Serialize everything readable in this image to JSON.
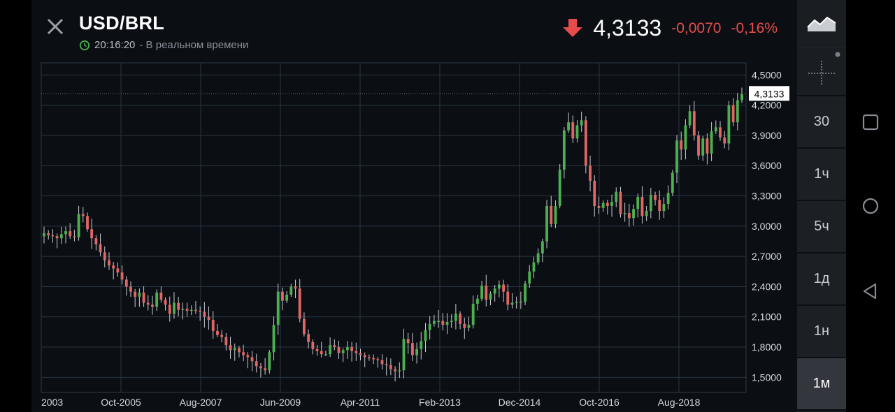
{
  "header": {
    "symbol": "USD/BRL",
    "time": "20:16:20",
    "time_suffix": "- В реальном времени",
    "price": "4,3133",
    "change": "-0,0070",
    "change_pct": "-0,16%",
    "direction": "down",
    "down_color": "#e74c4c"
  },
  "toolbar": {
    "chart_type_icon": "area-chart-icon",
    "crosshair_icon": "crosshair-icon",
    "timeframes": [
      "30",
      "1ч",
      "5ч",
      "1д",
      "1н",
      "1м"
    ],
    "active_timeframe": "1м"
  },
  "chart_data": {
    "type": "candlestick",
    "ylim": [
      1.35,
      4.62
    ],
    "yticks": [
      "4,5000",
      "4,2000",
      "3,9000",
      "3,6000",
      "3,3000",
      "3,0000",
      "2,7000",
      "2,4000",
      "2,1000",
      "1,8000",
      "1,5000"
    ],
    "ytick_values": [
      4.5,
      4.2,
      3.9,
      3.6,
      3.3,
      3.0,
      2.7,
      2.4,
      2.1,
      1.8,
      1.5
    ],
    "xticks": [
      "2003",
      "Oct-2005",
      "Aug-2007",
      "Jun-2009",
      "Apr-2011",
      "Feb-2013",
      "Dec-2014",
      "Oct-2016",
      "Aug-2018"
    ],
    "last_price_label": "4,3133",
    "last_price": 4.3133,
    "up_color": "#4caf50",
    "down_color": "#e06666",
    "monthly_closes": [
      2.93,
      2.91,
      2.9,
      2.88,
      2.92,
      2.95,
      2.9,
      2.89,
      3.12,
      3.1,
      2.97,
      2.88,
      2.82,
      2.74,
      2.66,
      2.61,
      2.58,
      2.54,
      2.47,
      2.4,
      2.35,
      2.3,
      2.34,
      2.24,
      2.22,
      2.2,
      2.34,
      2.27,
      2.22,
      2.13,
      2.24,
      2.17,
      2.18,
      2.16,
      2.17,
      2.16,
      2.15,
      2.1,
      2.07,
      1.96,
      1.92,
      1.9,
      1.82,
      1.77,
      1.79,
      1.75,
      1.72,
      1.7,
      1.66,
      1.61,
      1.59,
      1.57,
      1.75,
      2.02,
      2.35,
      2.26,
      2.32,
      2.4,
      2.38,
      2.08,
      1.93,
      1.85,
      1.78,
      1.76,
      1.73,
      1.73,
      1.82,
      1.8,
      1.74,
      1.77,
      1.8,
      1.76,
      1.74,
      1.72,
      1.7,
      1.69,
      1.68,
      1.67,
      1.63,
      1.62,
      1.58,
      1.56,
      1.57,
      1.88,
      1.84,
      1.72,
      1.78,
      1.86,
      1.97,
      2.03,
      2.06,
      2.06,
      2.02,
      2.05,
      2.06,
      2.13,
      2.03,
      1.99,
      2.02,
      2.23,
      2.28,
      2.41,
      2.27,
      2.33,
      2.38,
      2.42,
      2.35,
      2.22,
      2.24,
      2.25,
      2.25,
      2.43,
      2.55,
      2.64,
      2.73,
      2.85,
      3.2,
      3.02,
      3.2,
      3.56,
      3.95,
      4.03,
      3.87,
      4.0,
      4.05,
      3.6,
      3.45,
      3.2,
      3.18,
      3.23,
      3.2,
      3.24,
      3.34,
      3.12,
      3.13,
      3.08,
      3.17,
      3.29,
      3.1,
      3.15,
      3.31,
      3.26,
      3.15,
      3.22,
      3.33,
      3.53,
      3.85,
      3.76,
      4.0,
      4.14,
      3.9,
      3.7,
      3.87,
      3.72,
      3.94,
      3.98,
      3.88,
      3.82,
      4.2,
      4.03,
      4.25,
      4.31
    ]
  }
}
